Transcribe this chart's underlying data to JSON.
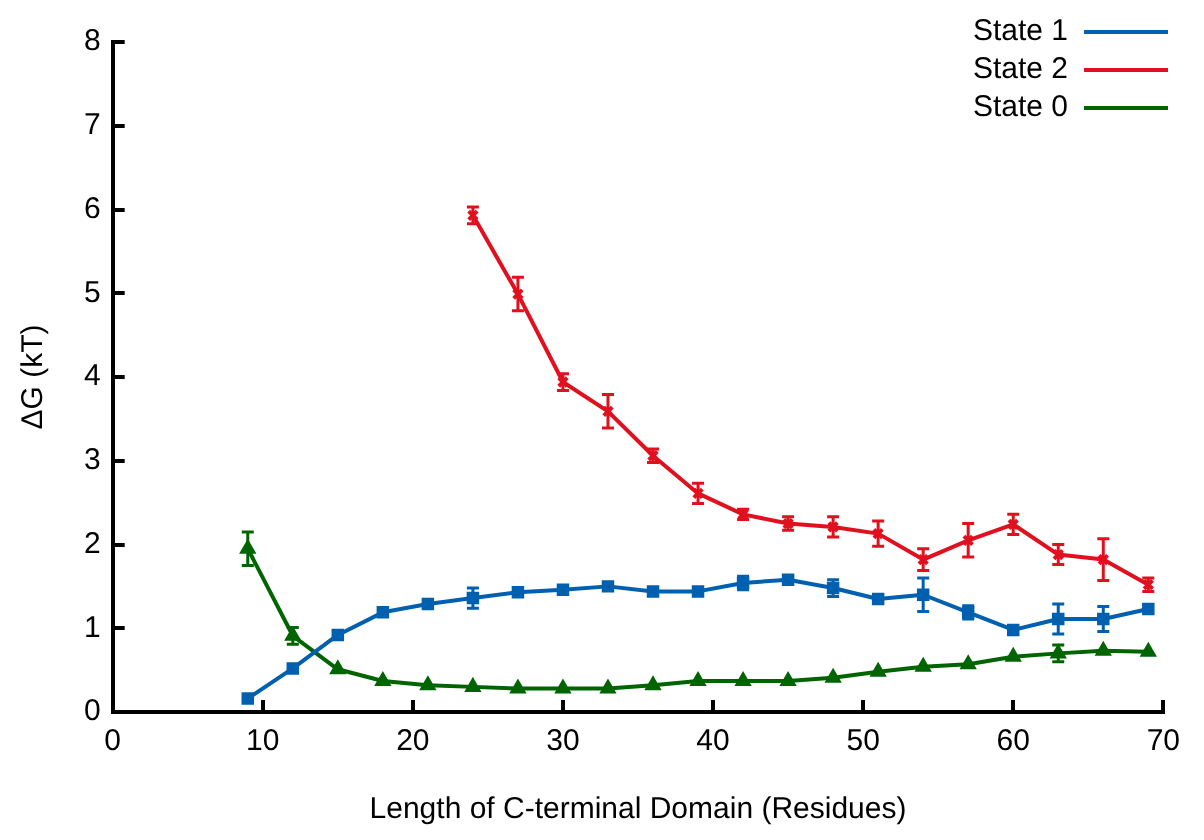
{
  "chart_data": {
    "type": "line",
    "xlabel": "Length of C-terminal Domain (Residues)",
    "ylabel": "ΔG (kT)",
    "x": [
      9,
      12,
      15,
      18,
      21,
      24,
      27,
      30,
      33,
      36,
      39,
      42,
      45,
      48,
      51,
      54,
      57,
      60,
      63,
      66,
      69
    ],
    "xlim": [
      0,
      70
    ],
    "xticks": [
      0,
      10,
      20,
      30,
      40,
      50,
      60,
      70
    ],
    "ylim": [
      0,
      8
    ],
    "yticks": [
      0,
      1,
      2,
      3,
      4,
      5,
      6,
      7,
      8
    ],
    "grid": false,
    "legend": "top right",
    "line_style": "solid",
    "series": [
      {
        "name": "State 1",
        "color": "#0060b0",
        "marker": "square",
        "values": [
          0.16,
          0.52,
          0.92,
          1.19,
          1.29,
          1.36,
          1.43,
          1.46,
          1.5,
          1.44,
          1.44,
          1.54,
          1.58,
          1.48,
          1.35,
          1.4,
          1.19,
          0.98,
          1.11,
          1.11,
          1.23
        ],
        "errors": [
          null,
          null,
          null,
          null,
          null,
          0.12,
          null,
          null,
          null,
          null,
          null,
          0.08,
          null,
          0.1,
          null,
          0.2,
          0.08,
          null,
          0.18,
          0.15,
          null
        ]
      },
      {
        "name": "State 2",
        "color": "#e0101e",
        "marker": "cross",
        "values": [
          null,
          null,
          null,
          null,
          null,
          5.93,
          4.99,
          3.94,
          3.59,
          3.06,
          2.61,
          2.36,
          2.25,
          2.21,
          2.13,
          1.82,
          2.05,
          2.24,
          1.88,
          1.82,
          1.52
        ],
        "errors": [
          null,
          null,
          null,
          null,
          null,
          0.1,
          0.2,
          0.1,
          0.2,
          0.08,
          0.12,
          0.06,
          0.08,
          0.12,
          0.15,
          0.13,
          0.2,
          0.12,
          0.12,
          0.25,
          0.08
        ]
      },
      {
        "name": "State 0",
        "color": "#006400",
        "marker": "triangle",
        "values": [
          1.95,
          0.91,
          0.51,
          0.37,
          0.32,
          0.3,
          0.28,
          0.28,
          0.28,
          0.32,
          0.37,
          0.37,
          0.37,
          0.41,
          0.48,
          0.54,
          0.57,
          0.66,
          0.7,
          0.73,
          0.72
        ],
        "errors": [
          0.2,
          0.1,
          null,
          null,
          null,
          null,
          null,
          null,
          null,
          null,
          null,
          null,
          null,
          null,
          null,
          null,
          null,
          null,
          0.1,
          null,
          null
        ]
      }
    ]
  }
}
